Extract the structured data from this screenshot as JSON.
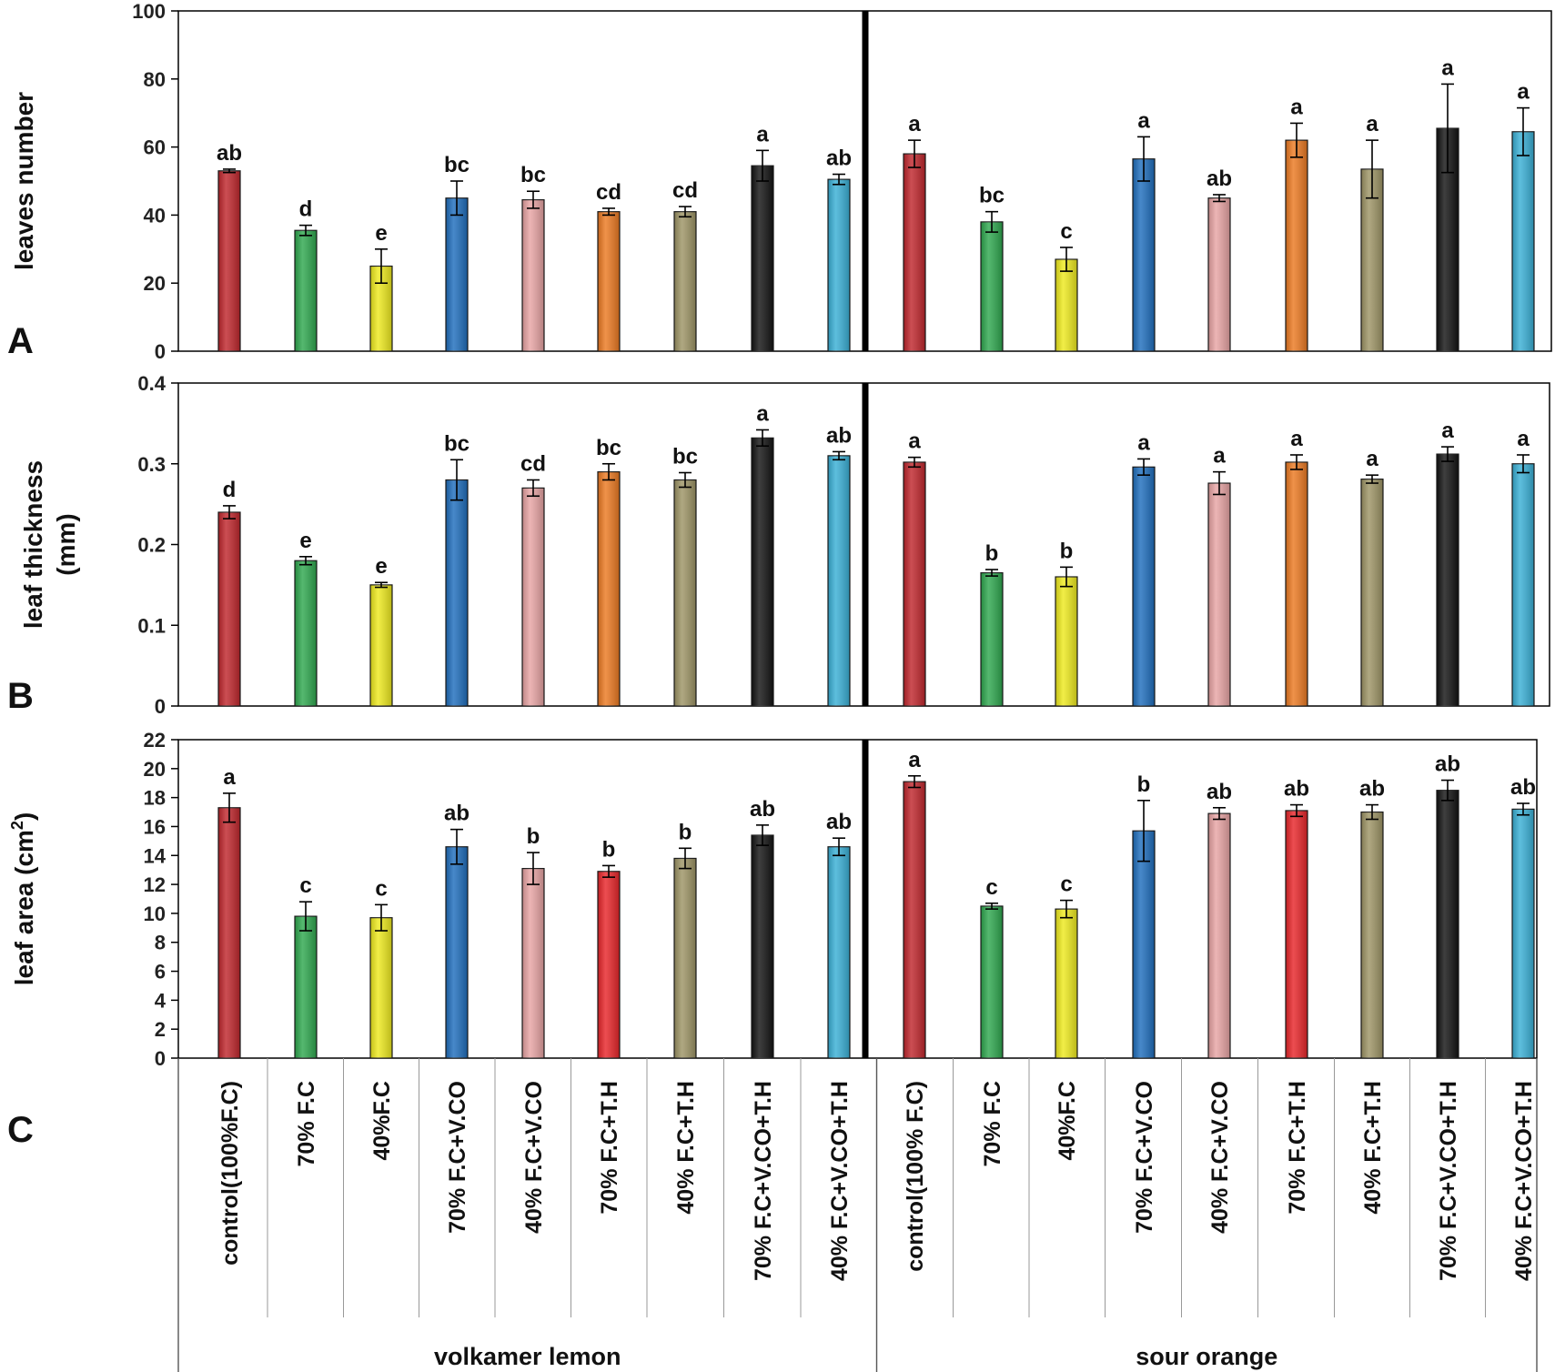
{
  "categories": [
    "control(100%F.C)",
    "70% F.C",
    "40%F.C",
    "70% F.C+V.CO",
    "40% F.C+V.CO",
    "70% F.C+T.H",
    "40% F.C+T.H",
    "70% F.C+V.CO+T.H",
    "40% F.C+V.CO+T.H",
    "control(100% F.C)",
    "70% F.C",
    "40%F.C",
    "70% F.C+V.CO",
    "40% F.C+V.CO",
    "70% F.C+T.H",
    "40% F.C+T.H",
    "70% F.C+V.CO+T.H",
    "40% F.C+V.CO+T.H"
  ],
  "groups": [
    {
      "label": "volkamer lemon",
      "count": 9
    },
    {
      "label": "sour orange",
      "count": 9
    }
  ],
  "chart_data": [
    {
      "type": "bar",
      "panel_letter": "A",
      "ylabel": "leaves number",
      "ylim": [
        0,
        100
      ],
      "yticks": [
        "0",
        "20",
        "40",
        "60",
        "80",
        "100"
      ],
      "colors": [
        "#c0272d",
        "#2fa84f",
        "#eeea1e",
        "#1f6ebd",
        "#e8a4a4",
        "#ec7a22",
        "#9e9566",
        "#141414",
        "#3ab0d6",
        "#c0272d",
        "#2fa84f",
        "#eeea1e",
        "#1f6ebd",
        "#e8a4a4",
        "#ec7a22",
        "#9e9566",
        "#141414",
        "#3ab0d6"
      ],
      "values": [
        53,
        35.5,
        25,
        45,
        44.5,
        41,
        41,
        54.5,
        50.5,
        58,
        38,
        27,
        56.5,
        45,
        62,
        53.5,
        65.5,
        64.5
      ],
      "errors": [
        0.5,
        1.5,
        5,
        5,
        2.5,
        1,
        1.5,
        4.5,
        1.5,
        4,
        3,
        3.5,
        6.5,
        1,
        5,
        8.5,
        13,
        7
      ],
      "letters": [
        "ab",
        "d",
        "e",
        "bc",
        "bc",
        "cd",
        "cd",
        "a",
        "ab",
        "a",
        "bc",
        "c",
        "a",
        "ab",
        "a",
        "a",
        "a",
        "a"
      ]
    },
    {
      "type": "bar",
      "panel_letter": "B",
      "ylabel": "leaf thickness",
      "ylabel_line2": "(mm)",
      "ylim": [
        0,
        0.4
      ],
      "yticks": [
        "0",
        "0.1",
        "0.2",
        "0.3",
        "0.4"
      ],
      "colors": [
        "#c0272d",
        "#2fa84f",
        "#eeea1e",
        "#1f6ebd",
        "#e8a4a4",
        "#ec7a22",
        "#9e9566",
        "#141414",
        "#3ab0d6",
        "#c0272d",
        "#2fa84f",
        "#eeea1e",
        "#1f6ebd",
        "#e8a4a4",
        "#ec7a22",
        "#9e9566",
        "#141414",
        "#3ab0d6"
      ],
      "values": [
        0.24,
        0.18,
        0.15,
        0.28,
        0.27,
        0.29,
        0.28,
        0.332,
        0.31,
        0.302,
        0.165,
        0.16,
        0.296,
        0.276,
        0.302,
        0.281,
        0.312,
        0.3
      ],
      "errors": [
        0.008,
        0.005,
        0.003,
        0.025,
        0.01,
        0.01,
        0.009,
        0.01,
        0.005,
        0.006,
        0.004,
        0.012,
        0.01,
        0.014,
        0.009,
        0.005,
        0.009,
        0.011
      ],
      "letters": [
        "d",
        "e",
        "e",
        "bc",
        "cd",
        "bc",
        "bc",
        "a",
        "ab",
        "a",
        "b",
        "b",
        "a",
        "a",
        "a",
        "a",
        "a",
        "a"
      ]
    },
    {
      "type": "bar",
      "panel_letter": "C",
      "ylabel": "leaf area (cm",
      "ylabel_sup": "2",
      "ylabel_end": ")",
      "ylim": [
        0,
        22
      ],
      "yticks": [
        "0",
        "2",
        "4",
        "6",
        "8",
        "10",
        "12",
        "14",
        "16",
        "18",
        "20",
        "22"
      ],
      "colors": [
        "#c0272d",
        "#2fa84f",
        "#eeea1e",
        "#1f6ebd",
        "#e8a4a4",
        "#e8262a",
        "#9e9566",
        "#141414",
        "#3ab0d6",
        "#c0272d",
        "#2fa84f",
        "#eeea1e",
        "#1f6ebd",
        "#e8a4a4",
        "#e8262a",
        "#9e9566",
        "#141414",
        "#3ab0d6"
      ],
      "values": [
        17.3,
        9.8,
        9.7,
        14.6,
        13.1,
        12.9,
        13.8,
        15.4,
        14.6,
        19.1,
        10.5,
        10.3,
        15.7,
        16.9,
        17.1,
        17.0,
        18.5,
        17.2
      ],
      "errors": [
        1.0,
        1.0,
        0.9,
        1.2,
        1.1,
        0.4,
        0.7,
        0.7,
        0.6,
        0.4,
        0.2,
        0.6,
        2.1,
        0.4,
        0.4,
        0.5,
        0.7,
        0.4
      ],
      "letters": [
        "a",
        "c",
        "c",
        "ab",
        "b",
        "b",
        "b",
        "ab",
        "ab",
        "a",
        "c",
        "c",
        "b",
        "ab",
        "ab",
        "ab",
        "ab",
        "ab"
      ]
    }
  ]
}
